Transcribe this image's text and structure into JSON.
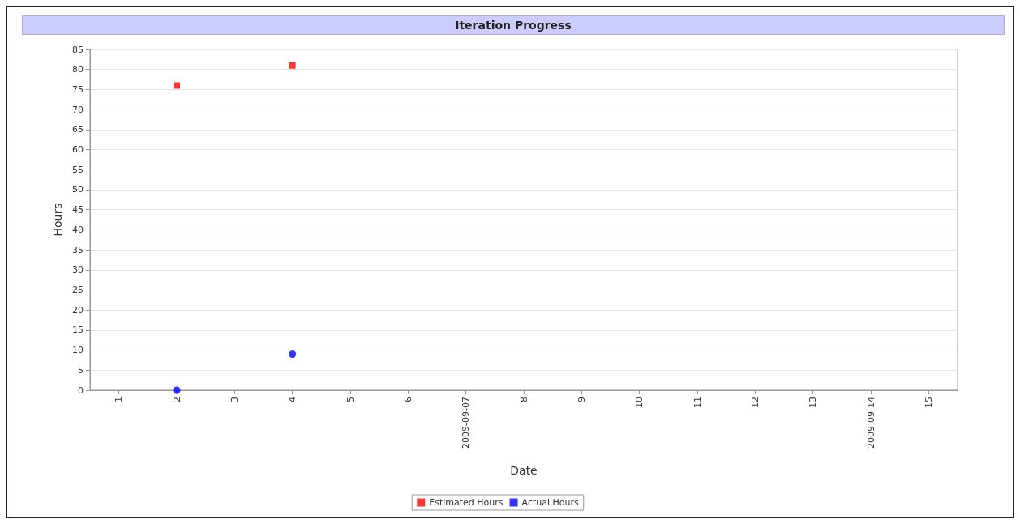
{
  "chart_data": {
    "type": "scatter",
    "title": "Iteration Progress",
    "xlabel": "Date",
    "ylabel": "Hours",
    "categories": [
      "1",
      "2",
      "3",
      "4",
      "5",
      "6",
      "2009-09-07",
      "8",
      "9",
      "10",
      "11",
      "12",
      "13",
      "2009-09-14",
      "15"
    ],
    "series": [
      {
        "name": "Estimated Hours",
        "color": "#ff0000",
        "marker": "square",
        "values": [
          null,
          76,
          null,
          81,
          null,
          null,
          null,
          null,
          null,
          null,
          null,
          null,
          null,
          null,
          null
        ]
      },
      {
        "name": "Actual Hours",
        "color": "#0000ff",
        "marker": "circle",
        "values": [
          null,
          0,
          null,
          9,
          null,
          null,
          null,
          null,
          null,
          null,
          null,
          null,
          null,
          null,
          null
        ]
      }
    ],
    "ylim": [
      0,
      85
    ],
    "yticks": [
      0,
      5,
      10,
      15,
      20,
      25,
      30,
      35,
      40,
      45,
      50,
      55,
      60,
      65,
      70,
      75,
      80,
      85
    ],
    "grid": "y",
    "legend": "bottom"
  }
}
